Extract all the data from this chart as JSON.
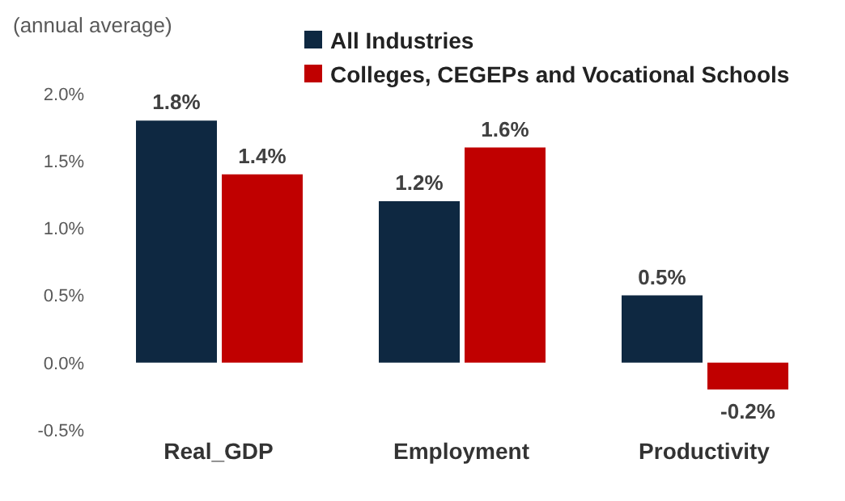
{
  "chart_data": {
    "type": "bar",
    "ylabel": "(annual average)",
    "categories": [
      "Real_GDP",
      "Employment",
      "Productivity"
    ],
    "series": [
      {
        "name": "All Industries",
        "color": "#0e2841",
        "values": [
          1.8,
          1.2,
          0.5
        ],
        "value_labels": [
          "1.8%",
          "1.2%",
          "0.5%"
        ]
      },
      {
        "name": "Colleges, CEGEPs and Vocational Schools",
        "color": "#c00000",
        "values": [
          1.4,
          1.6,
          -0.2
        ],
        "value_labels": [
          "1.4%",
          "1.6%",
          "-0.2%"
        ]
      }
    ],
    "ylim": [
      -0.5,
      2.0
    ],
    "yticks": [
      {
        "value": -0.5,
        "label": "-0.5%"
      },
      {
        "value": 0,
        "label": "0.0%"
      },
      {
        "value": 0.5,
        "label": "0.5%"
      },
      {
        "value": 1.0,
        "label": "1.0%"
      },
      {
        "value": 1.5,
        "label": "1.5%"
      },
      {
        "value": 2.0,
        "label": "2.0%"
      }
    ],
    "grid": false,
    "legend": "top"
  }
}
